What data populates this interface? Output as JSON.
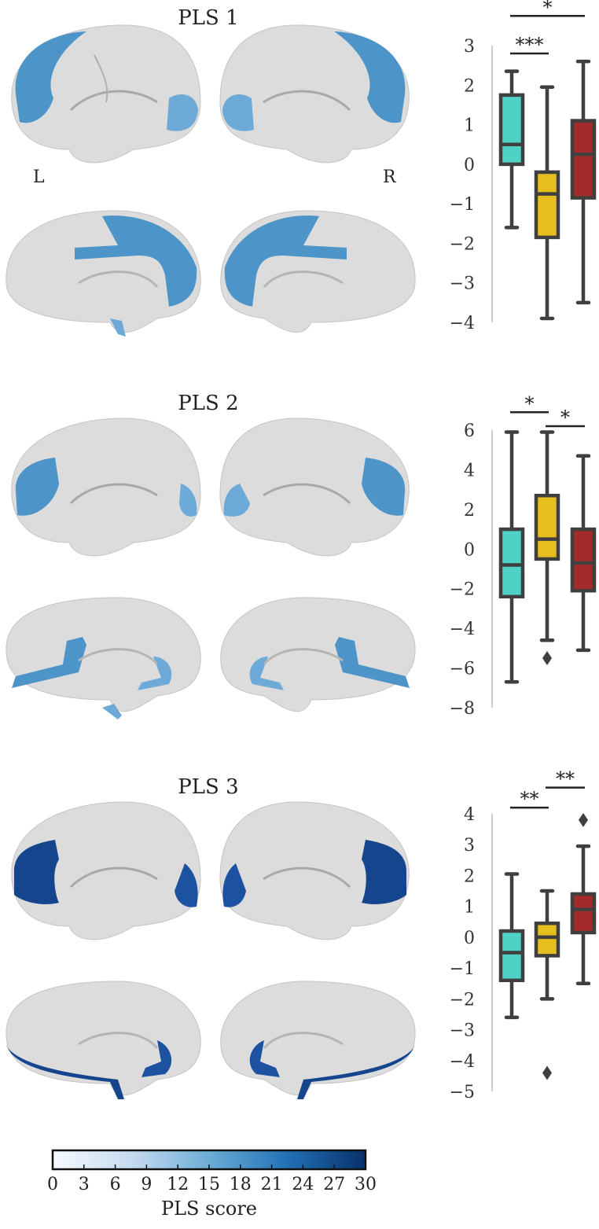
{
  "panels": [
    {
      "title": "PLS 1",
      "hemi_labels": {
        "left": "L",
        "right": "R"
      },
      "shade": "#4d94c8",
      "shade_light": "#6eaad8"
    },
    {
      "title": "PLS 2",
      "hemi_labels": {
        "left": "",
        "right": ""
      },
      "shade": "#4d94c8",
      "shade_light": "#6eaad8"
    },
    {
      "title": "PLS 3",
      "hemi_labels": {
        "left": "",
        "right": ""
      },
      "shade": "#15468d",
      "shade_light": "#1c52a0"
    }
  ],
  "colors": {
    "group1": "#4fd1c5",
    "group2": "#e6bf1f",
    "group3": "#a52a2a",
    "box_line": "#3f3f3f",
    "axis_line": "#cccccc",
    "brain_base": "#dcdcdc",
    "brain_shadow": "#b5b5b5"
  },
  "chart_data": [
    {
      "type": "box",
      "title": "PLS 1",
      "ylim": [
        -4,
        3
      ],
      "yticks": [
        3,
        2,
        1,
        0,
        -1,
        -2,
        -3,
        -4
      ],
      "ytick_labels": [
        "3",
        "2",
        "1",
        "0",
        "−1",
        "−2",
        "−3",
        "−4"
      ],
      "boxes": [
        {
          "min": -1.6,
          "q1": 0.0,
          "median": 0.5,
          "q3": 1.75,
          "max": 2.35,
          "fliers": []
        },
        {
          "min": -3.9,
          "q1": -1.85,
          "median": -0.75,
          "q3": -0.2,
          "max": 1.95,
          "fliers": []
        },
        {
          "min": -3.5,
          "q1": -0.85,
          "median": 0.25,
          "q3": 1.1,
          "max": 2.6,
          "fliers": []
        }
      ],
      "significance": [
        {
          "from": 0,
          "to": 1,
          "label": "***",
          "level": 2.8
        },
        {
          "from": 0,
          "to": 2,
          "label": "*",
          "level": 3.75
        }
      ]
    },
    {
      "type": "box",
      "title": "PLS 2",
      "ylim": [
        -8,
        6
      ],
      "yticks": [
        6,
        4,
        2,
        0,
        -2,
        -4,
        -6,
        -8
      ],
      "ytick_labels": [
        "6",
        "4",
        "2",
        "0",
        "−2",
        "−4",
        "−6",
        "−8"
      ],
      "boxes": [
        {
          "min": -6.7,
          "q1": -2.4,
          "median": -0.8,
          "q3": 1.0,
          "max": 5.9,
          "fliers": []
        },
        {
          "min": -4.6,
          "q1": -0.5,
          "median": 0.5,
          "q3": 2.7,
          "max": 5.9,
          "fliers": [
            -5.5
          ]
        },
        {
          "min": -5.1,
          "q1": -2.1,
          "median": -0.7,
          "q3": 1.0,
          "max": 4.7,
          "fliers": []
        }
      ],
      "significance": [
        {
          "from": 0,
          "to": 1,
          "label": "*",
          "level": 6.9
        },
        {
          "from": 1,
          "to": 2,
          "label": "*",
          "level": 6.2
        }
      ]
    },
    {
      "type": "box",
      "title": "PLS 3",
      "ylim": [
        -5,
        4
      ],
      "yticks": [
        4,
        3,
        2,
        1,
        0,
        -1,
        -2,
        -3,
        -4,
        -5
      ],
      "ytick_labels": [
        "4",
        "3",
        "2",
        "1",
        "0",
        "−1",
        "−2",
        "−3",
        "−4",
        "−5"
      ],
      "boxes": [
        {
          "min": -2.6,
          "q1": -1.4,
          "median": -0.5,
          "q3": 0.2,
          "max": 2.05,
          "fliers": []
        },
        {
          "min": -2.0,
          "q1": -0.6,
          "median": 0.0,
          "q3": 0.45,
          "max": 1.5,
          "fliers": [
            -4.4
          ]
        },
        {
          "min": -1.5,
          "q1": 0.15,
          "median": 0.9,
          "q3": 1.4,
          "max": 2.95,
          "fliers": [
            3.8
          ]
        }
      ],
      "significance": [
        {
          "from": 0,
          "to": 1,
          "label": "**",
          "level": 4.2
        },
        {
          "from": 1,
          "to": 2,
          "label": "**",
          "level": 4.85
        }
      ]
    }
  ],
  "colorbar": {
    "ticks": [
      0,
      3,
      6,
      9,
      12,
      15,
      18,
      21,
      24,
      27,
      30
    ],
    "label": "PLS score",
    "range": [
      0,
      30
    ],
    "gradient": [
      "#f7fbff",
      "#c6dbef",
      "#6baed6",
      "#2171b5",
      "#08306b"
    ]
  }
}
